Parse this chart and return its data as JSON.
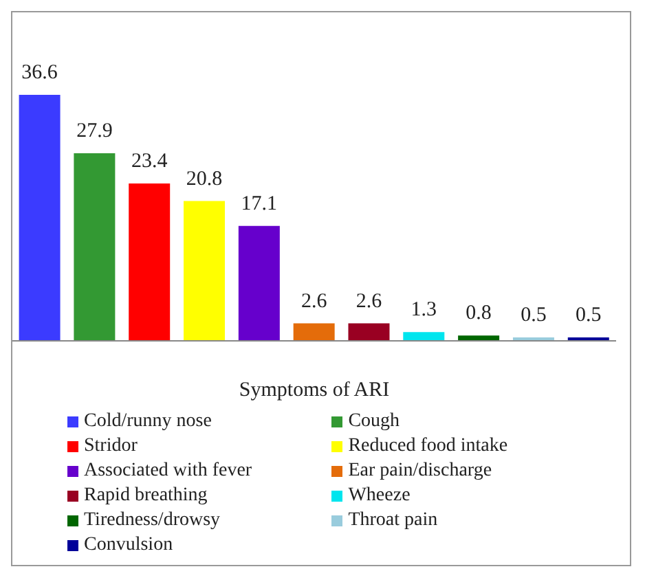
{
  "chart_data": {
    "type": "bar",
    "xlabel": "Symptoms of ARI",
    "categories": [
      null,
      null,
      null,
      null,
      null,
      null,
      null,
      null,
      null,
      null,
      null
    ],
    "stacked": true,
    "series": [
      {
        "name": "Cold/runny nose",
        "color": "#3b3bff",
        "values": [
          36.6,
          null,
          null,
          null,
          null,
          null,
          null,
          null,
          null,
          null,
          null
        ]
      },
      {
        "name": "Cough",
        "color": "#339933",
        "values": [
          null,
          27.9,
          null,
          null,
          null,
          null,
          null,
          null,
          null,
          null,
          null
        ]
      },
      {
        "name": "Stridor",
        "color": "#ff0000",
        "values": [
          null,
          null,
          23.4,
          null,
          null,
          null,
          null,
          null,
          null,
          null,
          null
        ]
      },
      {
        "name": "Reduced food intake",
        "color": "#ffff00",
        "values": [
          null,
          null,
          null,
          20.8,
          null,
          null,
          null,
          null,
          null,
          null,
          null
        ]
      },
      {
        "name": "Associated with fever",
        "color": "#6600cc",
        "values": [
          null,
          null,
          null,
          null,
          17.1,
          null,
          null,
          null,
          null,
          null,
          null
        ]
      },
      {
        "name": "Ear pain/discharge",
        "color": "#e46c0a",
        "values": [
          null,
          null,
          null,
          null,
          null,
          2.6,
          null,
          null,
          null,
          null,
          null
        ]
      },
      {
        "name": "Rapid breathing",
        "color": "#990022",
        "values": [
          null,
          null,
          null,
          null,
          null,
          null,
          2.6,
          null,
          null,
          null,
          null
        ]
      },
      {
        "name": "Wheeze",
        "color": "#00e5ee",
        "values": [
          null,
          null,
          null,
          null,
          null,
          null,
          null,
          1.3,
          null,
          null,
          null
        ]
      },
      {
        "name": "Tiredness/drowsy",
        "color": "#006600",
        "values": [
          null,
          null,
          null,
          null,
          null,
          null,
          null,
          null,
          0.8,
          null,
          null
        ]
      },
      {
        "name": "Throat pain",
        "color": "#99ccdd",
        "values": [
          null,
          null,
          null,
          null,
          null,
          null,
          null,
          null,
          null,
          0.5,
          null
        ]
      },
      {
        "name": "Convulsion",
        "color": "#000099",
        "values": [
          null,
          null,
          null,
          null,
          null,
          null,
          null,
          null,
          null,
          null,
          0.5
        ]
      }
    ],
    "data_labels": true,
    "grid": false,
    "legend": "bottom"
  }
}
